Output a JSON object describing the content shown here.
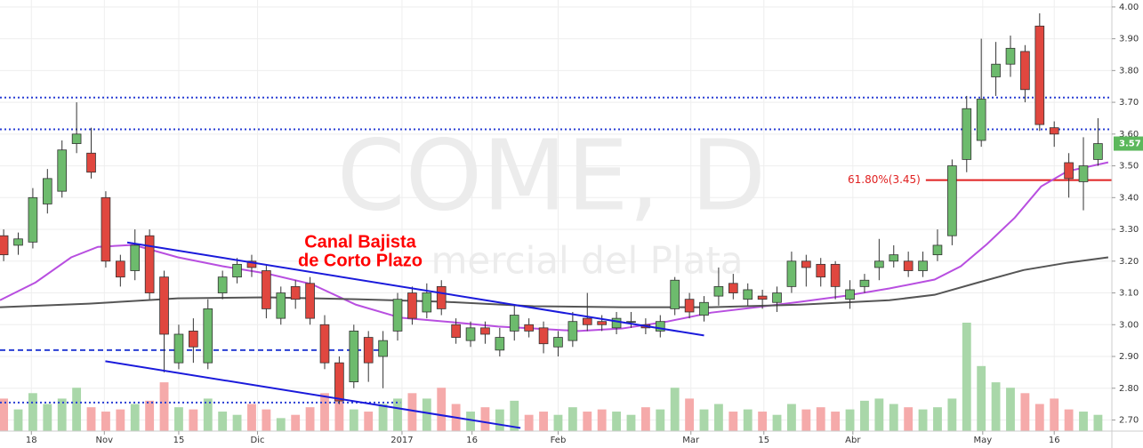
{
  "chart_data": {
    "type": "candlestick",
    "watermark": [
      "COME, D",
      "mercial del Plata"
    ],
    "annotation": [
      "Canal Bajista",
      "de Corto Plazo"
    ],
    "up_color": "#6dbb6d",
    "down_color": "#e0473f",
    "up_volume_color": "#a9d7a9",
    "down_volume_color": "#f5aaaa",
    "open": [
      3.28,
      3.25,
      3.26,
      3.38,
      3.42,
      3.57,
      3.54,
      3.4,
      3.2,
      3.17,
      3.28,
      3.15,
      2.88,
      2.98,
      2.88,
      3.1,
      3.15,
      3.2,
      3.17,
      3.02,
      3.12,
      3.13,
      3.0,
      2.88,
      2.82,
      2.96,
      2.9,
      2.98,
      3.1,
      3.04,
      3.12,
      3.0,
      2.95,
      2.99,
      2.92,
      2.98,
      3.0,
      2.99,
      2.93,
      2.95,
      3.02,
      3.01,
      2.99,
      3.01,
      3.0,
      2.98,
      3.05,
      3.08,
      3.03,
      3.09,
      3.13,
      3.08,
      3.09,
      3.07,
      3.12,
      3.2,
      3.19,
      3.19,
      3.08,
      3.12,
      3.18,
      3.2,
      3.2,
      3.17,
      3.22,
      3.28,
      3.52,
      3.58,
      3.78,
      3.82,
      3.86,
      3.94,
      3.62,
      3.51,
      3.45,
      3.52
    ],
    "high": [
      3.3,
      3.29,
      3.43,
      3.49,
      3.58,
      3.7,
      3.62,
      3.42,
      3.22,
      3.3,
      3.3,
      3.17,
      3.0,
      3.02,
      3.08,
      3.17,
      3.21,
      3.22,
      3.19,
      3.12,
      3.14,
      3.15,
      3.03,
      2.9,
      3.0,
      2.98,
      2.98,
      3.1,
      3.12,
      3.13,
      3.14,
      3.02,
      3.01,
      3.01,
      2.99,
      3.06,
      3.02,
      3.01,
      2.98,
      3.04,
      3.1,
      3.03,
      3.04,
      3.04,
      3.02,
      3.03,
      3.15,
      3.1,
      3.09,
      3.18,
      3.16,
      3.13,
      3.11,
      3.12,
      3.23,
      3.22,
      3.21,
      3.2,
      3.14,
      3.16,
      3.27,
      3.25,
      3.23,
      3.23,
      3.3,
      3.52,
      3.72,
      3.9,
      3.89,
      3.91,
      3.88,
      3.98,
      3.64,
      3.54,
      3.59,
      3.65
    ],
    "low": [
      3.2,
      3.22,
      3.24,
      3.35,
      3.4,
      3.54,
      3.46,
      3.18,
      3.12,
      3.14,
      3.08,
      2.85,
      2.86,
      2.88,
      2.86,
      3.08,
      3.13,
      3.15,
      3.02,
      3.0,
      3.05,
      3.0,
      2.86,
      2.75,
      2.8,
      2.82,
      2.8,
      2.95,
      3.0,
      3.02,
      3.03,
      2.94,
      2.93,
      2.94,
      2.9,
      2.95,
      2.96,
      2.91,
      2.9,
      2.93,
      2.98,
      2.98,
      2.97,
      2.99,
      2.97,
      2.96,
      3.03,
      3.02,
      3.01,
      3.06,
      3.08,
      3.06,
      3.05,
      3.04,
      3.1,
      3.12,
      3.12,
      3.08,
      3.05,
      3.1,
      3.14,
      3.18,
      3.15,
      3.15,
      3.2,
      3.25,
      3.48,
      3.56,
      3.72,
      3.78,
      3.7,
      3.61,
      3.56,
      3.4,
      3.36,
      3.5
    ],
    "close": [
      3.22,
      3.27,
      3.4,
      3.46,
      3.55,
      3.6,
      3.48,
      3.2,
      3.15,
      3.25,
      3.1,
      2.97,
      2.97,
      2.93,
      3.05,
      3.15,
      3.19,
      3.18,
      3.05,
      3.1,
      3.08,
      3.02,
      2.88,
      2.76,
      2.98,
      2.88,
      2.95,
      3.08,
      3.02,
      3.1,
      3.05,
      2.96,
      2.99,
      2.97,
      2.96,
      3.03,
      2.98,
      2.94,
      2.96,
      3.01,
      3.0,
      3.0,
      3.02,
      3.01,
      2.99,
      3.01,
      3.14,
      3.04,
      3.07,
      3.12,
      3.1,
      3.11,
      3.08,
      3.1,
      3.2,
      3.18,
      3.15,
      3.12,
      3.11,
      3.14,
      3.2,
      3.22,
      3.17,
      3.2,
      3.25,
      3.5,
      3.68,
      3.71,
      3.82,
      3.87,
      3.74,
      3.63,
      3.6,
      3.46,
      3.5,
      3.57
    ],
    "volume": [
      30,
      20,
      35,
      25,
      30,
      40,
      22,
      18,
      20,
      25,
      28,
      45,
      22,
      20,
      30,
      18,
      15,
      25,
      20,
      12,
      15,
      22,
      35,
      30,
      20,
      18,
      25,
      30,
      35,
      30,
      40,
      25,
      18,
      22,
      20,
      28,
      15,
      18,
      15,
      22,
      18,
      20,
      18,
      15,
      22,
      20,
      40,
      30,
      20,
      25,
      18,
      20,
      18,
      15,
      25,
      20,
      22,
      18,
      20,
      28,
      30,
      25,
      22,
      20,
      22,
      30,
      100,
      60,
      45,
      40,
      35,
      25,
      30,
      20,
      18,
      15
    ],
    "volume_lim": [
      0,
      100
    ],
    "xlim": [
      -0.25,
      75.95
    ],
    "xticks": [
      {
        "value": 1.9,
        "label": "18"
      },
      {
        "value": 6.9,
        "label": "Nov"
      },
      {
        "value": 12,
        "label": "15"
      },
      {
        "value": 17.4,
        "label": "Dic"
      },
      {
        "value": 27.3,
        "label": "2017"
      },
      {
        "value": 32.1,
        "label": "16"
      },
      {
        "value": 38,
        "label": "Feb"
      },
      {
        "value": 47.1,
        "label": "Mar"
      },
      {
        "value": 52.1,
        "label": "15"
      },
      {
        "value": 58.2,
        "label": "Abr"
      },
      {
        "value": 67.1,
        "label": "May"
      },
      {
        "value": 72,
        "label": "16"
      }
    ],
    "ylim": [
      2.665,
      4.022
    ],
    "yticks": [
      {
        "value": 2.7,
        "label": "2.70"
      },
      {
        "value": 2.8,
        "label": "2.80"
      },
      {
        "value": 2.9,
        "label": "2.90"
      },
      {
        "value": 3.0,
        "label": "3.00"
      },
      {
        "value": 3.1,
        "label": "3.10"
      },
      {
        "value": 3.2,
        "label": "3.20"
      },
      {
        "value": 3.3,
        "label": "3.30"
      },
      {
        "value": 3.4,
        "label": "3.40"
      },
      {
        "value": 3.5,
        "label": "3.50"
      },
      {
        "value": 3.6,
        "label": "3.60"
      },
      {
        "value": 3.7,
        "label": "3.70"
      },
      {
        "value": 3.8,
        "label": "3.80"
      },
      {
        "value": 3.9,
        "label": "3.90"
      },
      {
        "value": 4.0,
        "label": "4.00"
      }
    ],
    "grid": true,
    "lines": [
      {
        "color": "#b84fe0",
        "x": [
          -0.25,
          2.19,
          4.63,
          6.46,
          8.9,
          11.95,
          15.0,
          18.04,
          21.09,
          24.14,
          27.19,
          30.24,
          33.9,
          36.3,
          39.4,
          42.4,
          45.5,
          48.5,
          51.6,
          54.6,
          57.7,
          60.7,
          63.8,
          65.6,
          67.4,
          69.3,
          71.1,
          72.9,
          75.7
        ],
        "values": [
          3.077,
          3.133,
          3.212,
          3.245,
          3.251,
          3.212,
          3.184,
          3.161,
          3.128,
          3.063,
          3.022,
          3.01,
          2.994,
          2.988,
          2.98,
          2.988,
          3.01,
          3.038,
          3.055,
          3.072,
          3.091,
          3.114,
          3.142,
          3.184,
          3.254,
          3.337,
          3.435,
          3.483,
          3.511
        ]
      },
      {
        "color": "#555555",
        "x": [
          -0.25,
          5.85,
          11.95,
          18.04,
          24.14,
          30.24,
          36.3,
          42.4,
          48.5,
          54.6,
          60.7,
          63.8,
          66.8,
          69.9,
          72.9,
          75.7
        ],
        "values": [
          3.055,
          3.066,
          3.083,
          3.086,
          3.08,
          3.072,
          3.058,
          3.055,
          3.055,
          3.063,
          3.077,
          3.094,
          3.133,
          3.172,
          3.195,
          3.212
        ]
      }
    ],
    "trendlines": [
      {
        "color": "#1a1adb",
        "x": [
          8.47,
          48.0
        ],
        "values": [
          3.259,
          2.966
        ]
      },
      {
        "color": "#1a1adb",
        "x": [
          6.97,
          35.42
        ],
        "values": [
          2.885,
          2.675
        ]
      }
    ],
    "levels": [
      {
        "value": 3.715,
        "x": [
          -0.25,
          75.95
        ],
        "style": "dotted",
        "color": "#2a3fd4"
      },
      {
        "value": 3.615,
        "x": [
          -0.25,
          75.95
        ],
        "style": "dotted",
        "color": "#2a3fd4"
      },
      {
        "value": 2.92,
        "x": [
          -0.25,
          26.0
        ],
        "style": "dashed",
        "color": "#2a3fd4"
      },
      {
        "value": 2.755,
        "x": [
          -0.25,
          27.2
        ],
        "style": "dotted",
        "color": "#2a3fd4"
      },
      {
        "value": 3.455,
        "x": [
          63.2,
          75.95
        ],
        "style": "solid",
        "color": "#e02020",
        "label": "61.80%(3.45)"
      }
    ],
    "last_price": {
      "value": 3.57,
      "label": "3.57",
      "color": "#5cb85c"
    }
  }
}
